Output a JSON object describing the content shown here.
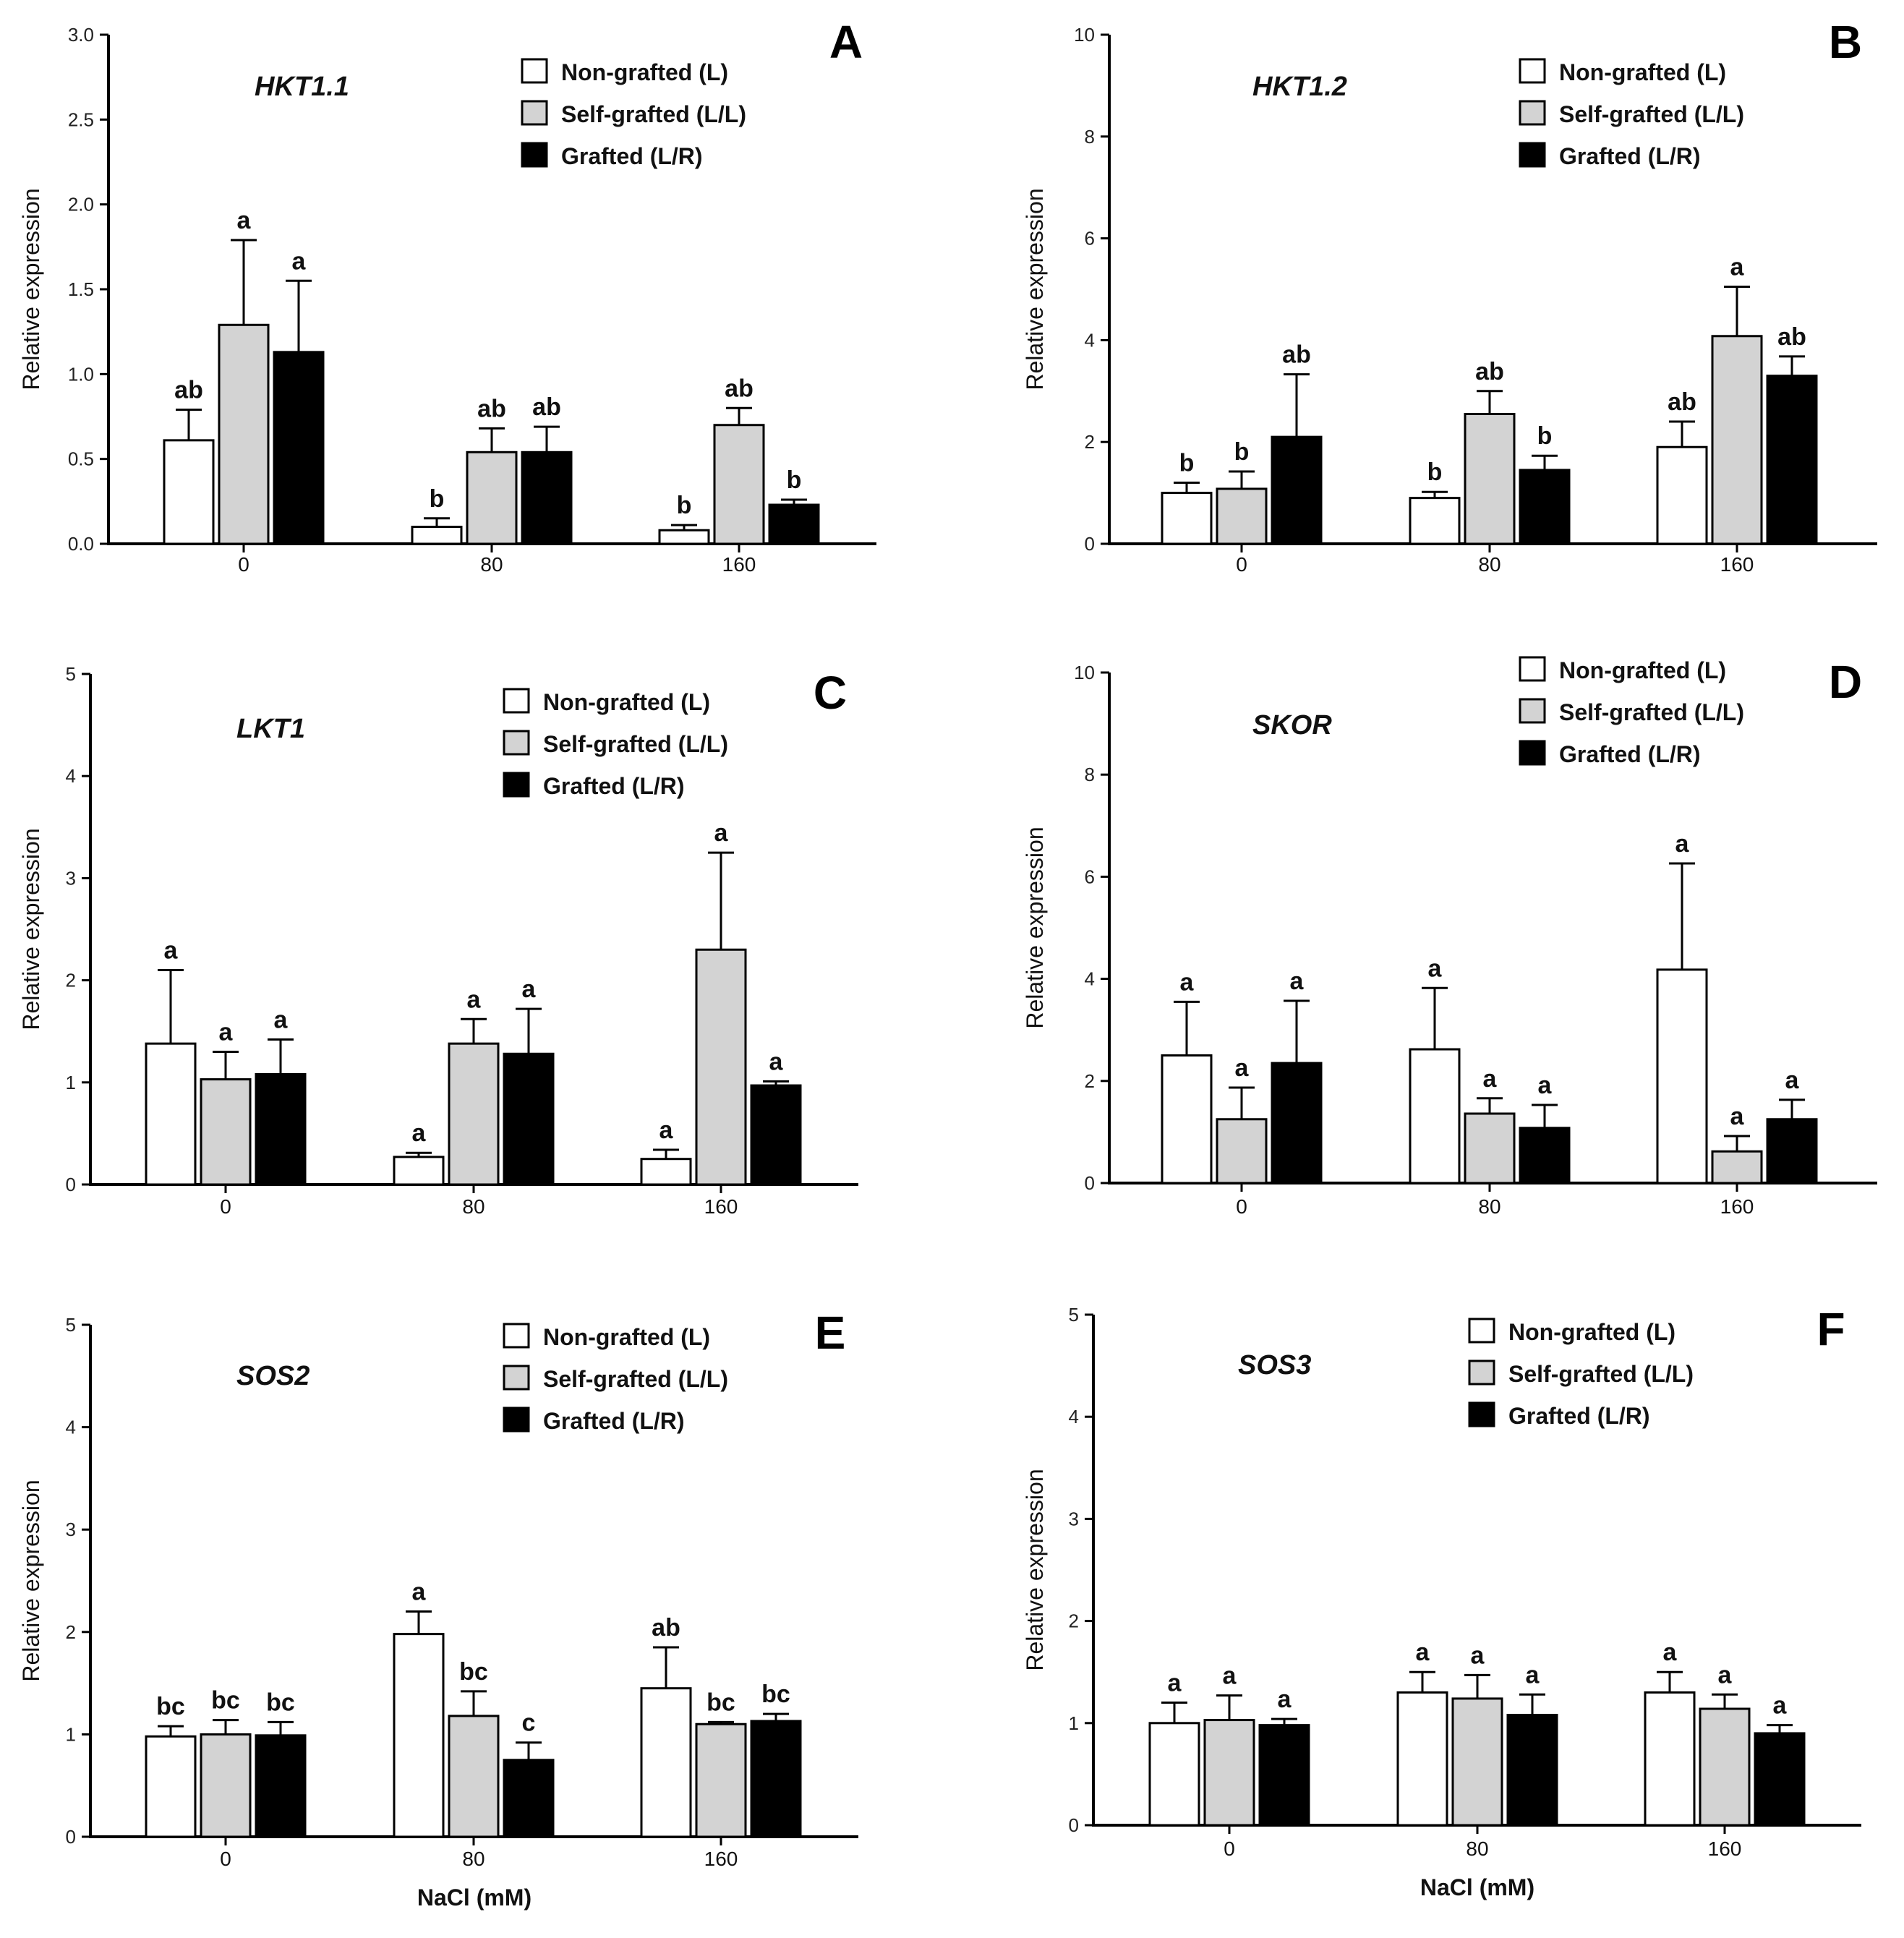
{
  "chart_data": [
    {
      "type": "bar",
      "panel": "A",
      "gene": "HKT1.1",
      "ylabel": "Relative expression",
      "xlabel": "",
      "ylim": [
        0,
        3.0
      ],
      "yticks": [
        "0.0",
        "0.5",
        "1.0",
        "1.5",
        "2.0",
        "2.5",
        "3.0"
      ],
      "categories": [
        "0",
        "80",
        "160"
      ],
      "series": [
        {
          "name": "Non-grafted (L)",
          "color": "#ffffff",
          "values": [
            0.61,
            0.1,
            0.08
          ],
          "errors": [
            0.18,
            0.05,
            0.03
          ],
          "labels": [
            "ab",
            "b",
            "b"
          ]
        },
        {
          "name": "Self-grafted (L/L)",
          "color": "#d3d3d3",
          "values": [
            1.29,
            0.54,
            0.7
          ],
          "errors": [
            0.5,
            0.14,
            0.1
          ],
          "labels": [
            "a",
            "ab",
            "ab"
          ]
        },
        {
          "name": "Grafted (L/R)",
          "color": "#000000",
          "values": [
            1.13,
            0.54,
            0.23
          ],
          "errors": [
            0.42,
            0.15,
            0.03
          ],
          "labels": [
            "a",
            "ab",
            "b"
          ]
        }
      ]
    },
    {
      "type": "bar",
      "panel": "B",
      "gene": "HKT1.2",
      "ylabel": "Relative expression",
      "xlabel": "",
      "ylim": [
        0,
        10
      ],
      "yticks": [
        "0",
        "2",
        "4",
        "6",
        "8",
        "10"
      ],
      "categories": [
        "0",
        "80",
        "160"
      ],
      "series": [
        {
          "name": "Non-grafted (L)",
          "color": "#ffffff",
          "values": [
            1.0,
            0.9,
            1.9
          ],
          "errors": [
            0.2,
            0.12,
            0.5
          ],
          "labels": [
            "b",
            "b",
            "ab"
          ]
        },
        {
          "name": "Self-grafted (L/L)",
          "color": "#d3d3d3",
          "values": [
            1.08,
            2.55,
            4.08
          ],
          "errors": [
            0.34,
            0.45,
            0.97
          ],
          "labels": [
            "b",
            "ab",
            "a"
          ]
        },
        {
          "name": "Grafted (L/R)",
          "color": "#000000",
          "values": [
            2.1,
            1.45,
            3.3
          ],
          "errors": [
            1.23,
            0.28,
            0.38
          ],
          "labels": [
            "ab",
            "b",
            "ab"
          ]
        }
      ]
    },
    {
      "type": "bar",
      "panel": "C",
      "gene": "LKT1",
      "ylabel": "Relative expression",
      "xlabel": "",
      "ylim": [
        0,
        5
      ],
      "yticks": [
        "0",
        "1",
        "2",
        "3",
        "4",
        "5"
      ],
      "categories": [
        "0",
        "80",
        "160"
      ],
      "series": [
        {
          "name": "Non-grafted (L)",
          "color": "#ffffff",
          "values": [
            1.38,
            0.27,
            0.25
          ],
          "errors": [
            0.72,
            0.04,
            0.09
          ],
          "labels": [
            "a",
            "a",
            "a"
          ]
        },
        {
          "name": "Self-grafted (L/L)",
          "color": "#d3d3d3",
          "values": [
            1.03,
            1.38,
            2.3
          ],
          "errors": [
            0.27,
            0.24,
            0.95
          ],
          "labels": [
            "a",
            "a",
            "a"
          ]
        },
        {
          "name": "Grafted (L/R)",
          "color": "#000000",
          "values": [
            1.08,
            1.28,
            0.97
          ],
          "errors": [
            0.34,
            0.44,
            0.04
          ],
          "labels": [
            "a",
            "a",
            "a"
          ]
        }
      ]
    },
    {
      "type": "bar",
      "panel": "D",
      "gene": "SKOR",
      "ylabel": "Relative expression",
      "xlabel": "",
      "ylim": [
        0,
        10
      ],
      "yticks": [
        "0",
        "2",
        "4",
        "6",
        "8",
        "10"
      ],
      "categories": [
        "0",
        "80",
        "160"
      ],
      "series": [
        {
          "name": "Non-grafted (L)",
          "color": "#ffffff",
          "values": [
            2.5,
            2.62,
            4.18
          ],
          "errors": [
            1.05,
            1.2,
            2.08
          ],
          "labels": [
            "a",
            "a",
            "a"
          ]
        },
        {
          "name": "Self-grafted (L/L)",
          "color": "#d3d3d3",
          "values": [
            1.25,
            1.36,
            0.62
          ],
          "errors": [
            0.62,
            0.3,
            0.3
          ],
          "labels": [
            "a",
            "a",
            "a"
          ]
        },
        {
          "name": "Grafted (L/R)",
          "color": "#000000",
          "values": [
            2.35,
            1.08,
            1.25
          ],
          "errors": [
            1.22,
            0.45,
            0.38
          ],
          "labels": [
            "a",
            "a",
            "a"
          ]
        }
      ]
    },
    {
      "type": "bar",
      "panel": "E",
      "gene": "SOS2",
      "ylabel": "Relative expression",
      "xlabel": "NaCl (mM)",
      "ylim": [
        0,
        5
      ],
      "yticks": [
        "0",
        "1",
        "2",
        "3",
        "4",
        "5"
      ],
      "categories": [
        "0",
        "80",
        "160"
      ],
      "series": [
        {
          "name": "Non-grafted (L)",
          "color": "#ffffff",
          "values": [
            0.98,
            1.98,
            1.45
          ],
          "errors": [
            0.1,
            0.22,
            0.4
          ],
          "labels": [
            "bc",
            "a",
            "ab"
          ]
        },
        {
          "name": "Self-grafted (L/L)",
          "color": "#d3d3d3",
          "values": [
            1.0,
            1.18,
            1.1
          ],
          "errors": [
            0.14,
            0.24,
            0.02
          ],
          "labels": [
            "bc",
            "bc",
            "bc"
          ]
        },
        {
          "name": "Grafted (L/R)",
          "color": "#000000",
          "values": [
            0.99,
            0.75,
            1.13
          ],
          "errors": [
            0.13,
            0.17,
            0.07
          ],
          "labels": [
            "bc",
            "c",
            "bc"
          ]
        }
      ]
    },
    {
      "type": "bar",
      "panel": "F",
      "gene": "SOS3",
      "ylabel": "Relative expression",
      "xlabel": "NaCl (mM)",
      "ylim": [
        0,
        5
      ],
      "yticks": [
        "0",
        "1",
        "2",
        "3",
        "4",
        "5"
      ],
      "categories": [
        "0",
        "80",
        "160"
      ],
      "series": [
        {
          "name": "Non-grafted (L)",
          "color": "#ffffff",
          "values": [
            1.0,
            1.3,
            1.3
          ],
          "errors": [
            0.2,
            0.2,
            0.2
          ],
          "labels": [
            "a",
            "a",
            "a"
          ]
        },
        {
          "name": "Self-grafted (L/L)",
          "color": "#d3d3d3",
          "values": [
            1.03,
            1.24,
            1.14
          ],
          "errors": [
            0.24,
            0.23,
            0.14
          ],
          "labels": [
            "a",
            "a",
            "a"
          ]
        },
        {
          "name": "Grafted (L/R)",
          "color": "#000000",
          "values": [
            0.98,
            1.08,
            0.9
          ],
          "errors": [
            0.06,
            0.2,
            0.08
          ],
          "labels": [
            "a",
            "a",
            "a"
          ]
        }
      ]
    }
  ]
}
